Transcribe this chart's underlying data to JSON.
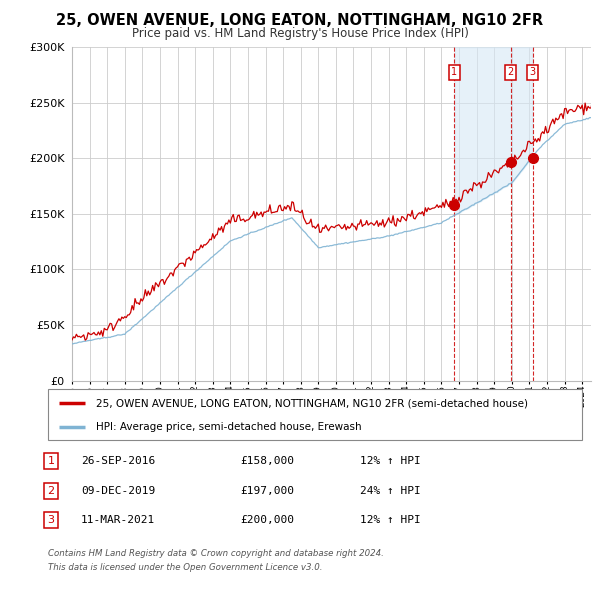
{
  "title": "25, OWEN AVENUE, LONG EATON, NOTTINGHAM, NG10 2FR",
  "subtitle": "Price paid vs. HM Land Registry's House Price Index (HPI)",
  "legend_entry1": "25, OWEN AVENUE, LONG EATON, NOTTINGHAM, NG10 2FR (semi-detached house)",
  "legend_entry2": "HPI: Average price, semi-detached house, Erewash",
  "footnote1": "Contains HM Land Registry data © Crown copyright and database right 2024.",
  "footnote2": "This data is licensed under the Open Government Licence v3.0.",
  "transactions": [
    {
      "num": 1,
      "date": "26-SEP-2016",
      "price": "£158,000",
      "hpi": "12% ↑ HPI",
      "year": 2016.73,
      "value": 158000
    },
    {
      "num": 2,
      "date": "09-DEC-2019",
      "price": "£197,000",
      "hpi": "24% ↑ HPI",
      "year": 2019.94,
      "value": 197000
    },
    {
      "num": 3,
      "date": "11-MAR-2021",
      "price": "£200,000",
      "hpi": "12% ↑ HPI",
      "year": 2021.19,
      "value": 200000
    }
  ],
  "red_color": "#cc0000",
  "blue_color": "#7fb3d3",
  "blue_fill_color": "#d6e8f5",
  "vline_color": "#cc0000",
  "background_color": "#ffffff",
  "grid_color": "#cccccc",
  "ylim": [
    0,
    300000
  ],
  "yticks": [
    0,
    50000,
    100000,
    150000,
    200000,
    250000,
    300000
  ],
  "xlim_start": 1995,
  "xlim_end": 2024.5
}
